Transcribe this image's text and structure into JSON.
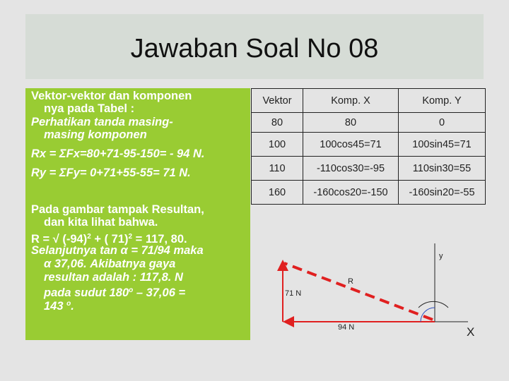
{
  "title": "Jawaban Soal No 08",
  "left_text": {
    "lines": [
      [
        "Vektor-vektor dan komponen"
      ],
      [
        "nya pada Tabel :"
      ],
      [
        "Perhatikan tanda masing-"
      ],
      [
        "masing komponen"
      ],
      [
        "Rx = ΣFx=80+71-95-150= - 94 N."
      ],
      [
        "Ry = ΣFy= 0+71+55-55= 71 N."
      ],
      [
        "Pada gambar tampak Resultan,"
      ],
      [
        "dan kita lihat bahwa."
      ],
      [
        "R = √ (-94)",
        "2",
        " + ( 71)",
        "2",
        " =  117, 80."
      ],
      [
        "Selanjutnya tan α = 71/94 maka"
      ],
      [
        "α 37,06. Akibatnya gaya"
      ],
      [
        "resultan adalah : 117,8. N"
      ],
      [
        "pada sudut 180",
        "o",
        " – 37,06 ="
      ],
      [
        "143 ",
        "o",
        "."
      ]
    ]
  },
  "table": {
    "header": [
      "Vektor",
      "Komp. X",
      "Komp. Y"
    ],
    "rows": [
      [
        "80",
        "80",
        "0"
      ],
      [
        "100",
        "100cos45=71",
        "100sin45=71"
      ],
      [
        "110",
        "-110cos30=-95",
        "110sin30=55"
      ],
      [
        "160",
        "-160cos20=-150",
        "-160sin20=-55"
      ]
    ]
  },
  "diagram": {
    "y_label": "y",
    "r_label": "R",
    "fy_label": "71 N",
    "fx_label": "94 N",
    "x_label": "X"
  }
}
